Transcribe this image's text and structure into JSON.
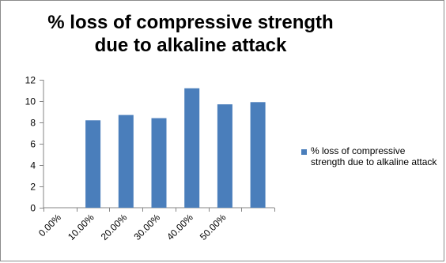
{
  "chart_data": {
    "type": "bar",
    "title": "% loss of compressive strength\ndue to alkaline attack",
    "categories": [
      "0.00%",
      "10.00%",
      "20.00%",
      "30.00%",
      "40.00%",
      "50.00%",
      ""
    ],
    "series": [
      {
        "name": "% loss of compressive strength due to alkaline attack",
        "values": [
          0,
          8.2,
          8.7,
          8.4,
          11.2,
          9.7,
          9.9
        ],
        "color": "#4a7ebb"
      }
    ],
    "ylim": [
      0,
      12
    ],
    "yticks": [
      0,
      2,
      4,
      6,
      8,
      10,
      12
    ],
    "xlabel": "",
    "ylabel": "",
    "grid": false,
    "legend_position": "right"
  }
}
